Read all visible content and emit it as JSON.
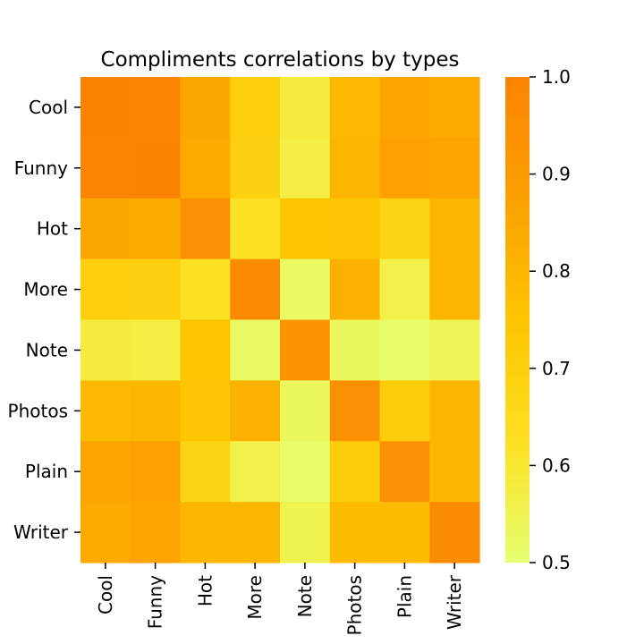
{
  "chart_data": {
    "type": "heatmap",
    "title": "Compliments correlations by types",
    "xlabel": "",
    "ylabel": "",
    "x_categories": [
      "Cool",
      "Funny",
      "Hot",
      "More",
      "Note",
      "Photos",
      "Plain",
      "Writer"
    ],
    "y_categories": [
      "Cool",
      "Funny",
      "Hot",
      "More",
      "Note",
      "Photos",
      "Plain",
      "Writer"
    ],
    "values": [
      [
        1.0,
        0.99,
        0.85,
        0.7,
        0.58,
        0.79,
        0.86,
        0.84
      ],
      [
        0.99,
        1.0,
        0.84,
        0.69,
        0.57,
        0.8,
        0.87,
        0.86
      ],
      [
        0.85,
        0.84,
        0.95,
        0.62,
        0.75,
        0.74,
        0.68,
        0.8
      ],
      [
        0.7,
        0.69,
        0.62,
        0.96,
        0.52,
        0.82,
        0.56,
        0.8
      ],
      [
        0.58,
        0.57,
        0.75,
        0.52,
        0.93,
        0.53,
        0.51,
        0.54
      ],
      [
        0.79,
        0.8,
        0.74,
        0.82,
        0.53,
        0.95,
        0.71,
        0.8
      ],
      [
        0.86,
        0.87,
        0.68,
        0.56,
        0.51,
        0.71,
        0.94,
        0.8
      ],
      [
        0.84,
        0.86,
        0.8,
        0.8,
        0.55,
        0.78,
        0.78,
        0.96
      ]
    ],
    "vmin": 0.5,
    "vmax": 1.0,
    "colormap": [
      "#e5ff70",
      "#fde021",
      "#fdc400",
      "#fca000",
      "#fb8303"
    ],
    "colorbar": {
      "ticks": [
        1.0,
        0.9,
        0.8,
        0.7,
        0.6,
        0.5
      ],
      "tick_labels": [
        "1.0",
        "0.9",
        "0.8",
        "0.7",
        "0.6",
        "0.5"
      ]
    },
    "grid": false,
    "legend": "colorbar-right"
  }
}
